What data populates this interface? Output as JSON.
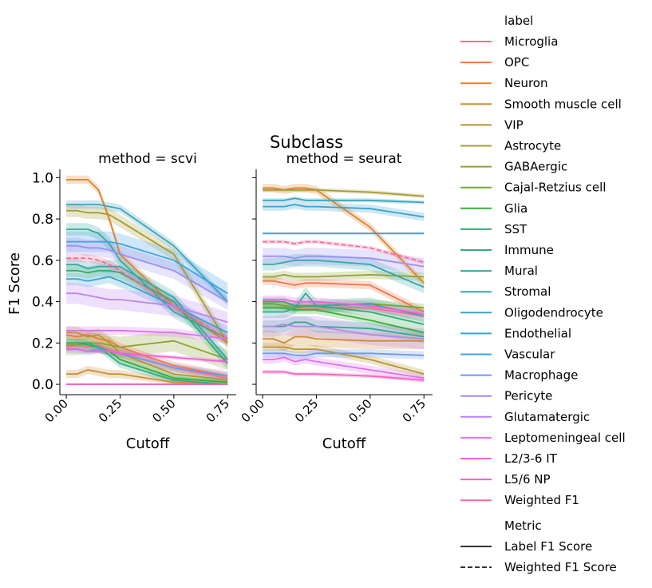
{
  "figure": {
    "suptitle": "Subclass"
  },
  "legend": {
    "label_title": "label",
    "metric_title": "Metric",
    "labels": [
      {
        "name": "Microglia",
        "color": "#f77189"
      },
      {
        "name": "OPC",
        "color": "#f2764a"
      },
      {
        "name": "Neuron",
        "color": "#e0822d"
      },
      {
        "name": "Smooth muscle cell",
        "color": "#cd8c32"
      },
      {
        "name": "VIP",
        "color": "#b89534"
      },
      {
        "name": "Astrocyte",
        "color": "#a59b33"
      },
      {
        "name": "GABAergic",
        "color": "#8fa233"
      },
      {
        "name": "Cajal-Retzius cell",
        "color": "#70aa33"
      },
      {
        "name": "Glia",
        "color": "#35ae3a"
      },
      {
        "name": "SST",
        "color": "#35ab6e"
      },
      {
        "name": "Immune",
        "color": "#36aa8a"
      },
      {
        "name": "Mural",
        "color": "#37a89c"
      },
      {
        "name": "Stromal",
        "color": "#38a7ac"
      },
      {
        "name": "Oligodendrocyte",
        "color": "#3aa5bc"
      },
      {
        "name": "Endothelial",
        "color": "#3ca2ce"
      },
      {
        "name": "Vascular",
        "color": "#42a0e6"
      },
      {
        "name": "Macrophage",
        "color": "#6e98f1"
      },
      {
        "name": "Pericyte",
        "color": "#9c8ef3"
      },
      {
        "name": "Glutamatergic",
        "color": "#bb83f3"
      },
      {
        "name": "Leptomeningeal cell",
        "color": "#da72f0"
      },
      {
        "name": "L2/3-6 IT",
        "color": "#f25fe0"
      },
      {
        "name": "L5/6 NP",
        "color": "#f563bd"
      },
      {
        "name": "Weighted F1",
        "color": "#f66b9e"
      }
    ],
    "metrics": [
      {
        "name": "Label F1 Score",
        "dash": "solid"
      },
      {
        "name": "Weighted F1 Score",
        "dash": "dashed"
      }
    ]
  },
  "chart_data": [
    {
      "type": "line",
      "title": "method = scvi",
      "xlabel": "Cutoff",
      "ylabel": "F1 Score",
      "xlim": [
        -0.03,
        0.79
      ],
      "ylim": [
        -0.05,
        1.04
      ],
      "x_ticks": [
        "0.00",
        "0.25",
        "0.50",
        "0.75"
      ],
      "y_ticks": [
        "0.0",
        "0.2",
        "0.4",
        "0.6",
        "0.8",
        "1.0"
      ],
      "x": [
        0.0,
        0.05,
        0.1,
        0.15,
        0.2,
        0.25,
        0.5,
        0.75
      ],
      "series": [
        {
          "label": "Microglia",
          "values": [
            0.18,
            0.19,
            0.18,
            0.19,
            0.17,
            0.15,
            0.08,
            0.03
          ],
          "band": 0.02
        },
        {
          "label": "OPC",
          "values": [
            0.24,
            0.23,
            0.24,
            0.22,
            0.21,
            0.18,
            0.09,
            0.04
          ],
          "band": 0.02
        },
        {
          "label": "Neuron",
          "values": [
            0.99,
            0.99,
            0.99,
            0.94,
            0.8,
            0.63,
            0.38,
            0.2
          ],
          "band": 0.02
        },
        {
          "label": "Smooth muscle cell",
          "values": [
            0.05,
            0.05,
            0.07,
            0.06,
            0.05,
            0.05,
            0.01,
            0.0
          ],
          "band": 0.02
        },
        {
          "label": "VIP",
          "values": [
            0.25,
            0.25,
            0.23,
            0.24,
            0.2,
            0.15,
            0.05,
            0.02
          ],
          "band": 0.03
        },
        {
          "label": "Astrocyte",
          "values": [
            0.84,
            0.84,
            0.83,
            0.83,
            0.82,
            0.79,
            0.63,
            0.2
          ],
          "band": 0.03
        },
        {
          "label": "GABAergic",
          "values": [
            0.19,
            0.19,
            0.2,
            0.2,
            0.19,
            0.18,
            0.21,
            0.12
          ],
          "band": 0.05
        },
        {
          "label": "Cajal-Retzius cell",
          "values": [
            0.0,
            0.0,
            0.0,
            0.0,
            0.0,
            0.0,
            0.0,
            0.0
          ],
          "band": 0.005
        },
        {
          "label": "Glia",
          "values": [
            0.2,
            0.2,
            0.19,
            0.18,
            0.16,
            0.12,
            0.03,
            0.01
          ],
          "band": 0.02
        },
        {
          "label": "SST",
          "values": [
            0.55,
            0.55,
            0.54,
            0.55,
            0.55,
            0.54,
            0.4,
            0.1
          ],
          "band": 0.03
        },
        {
          "label": "Immune",
          "values": [
            0.2,
            0.2,
            0.2,
            0.18,
            0.14,
            0.1,
            0.02,
            0.0
          ],
          "band": 0.02
        },
        {
          "label": "Mural",
          "values": [
            0.75,
            0.75,
            0.75,
            0.73,
            0.68,
            0.6,
            0.35,
            0.22
          ],
          "band": 0.03
        },
        {
          "label": "Stromal",
          "values": [
            0.58,
            0.58,
            0.56,
            0.57,
            0.57,
            0.57,
            0.42,
            0.12
          ],
          "band": 0.03
        },
        {
          "label": "Oligodendrocyte",
          "values": [
            0.87,
            0.87,
            0.87,
            0.87,
            0.86,
            0.85,
            0.67,
            0.4
          ],
          "band": 0.02
        },
        {
          "label": "Endothelial",
          "values": [
            0.51,
            0.51,
            0.5,
            0.51,
            0.52,
            0.5,
            0.38,
            0.25
          ],
          "band": 0.03
        },
        {
          "label": "Vascular",
          "values": [
            0.69,
            0.69,
            0.69,
            0.69,
            0.69,
            0.68,
            0.6,
            0.44
          ],
          "band": 0.05
        },
        {
          "label": "Macrophage",
          "values": [
            0.17,
            0.17,
            0.16,
            0.17,
            0.16,
            0.15,
            0.08,
            0.04
          ],
          "band": 0.02
        },
        {
          "label": "Pericyte",
          "values": [
            0.67,
            0.67,
            0.66,
            0.66,
            0.65,
            0.63,
            0.55,
            0.4
          ],
          "band": 0.04
        },
        {
          "label": "Glutamatergic",
          "values": [
            0.44,
            0.44,
            0.43,
            0.42,
            0.41,
            0.41,
            0.38,
            0.3
          ],
          "band": 0.05
        },
        {
          "label": "Leptomeningeal cell",
          "values": [
            0.26,
            0.26,
            0.26,
            0.26,
            0.26,
            0.26,
            0.25,
            0.22
          ],
          "band": 0.02
        },
        {
          "label": "L2/3-6 IT",
          "values": [
            0.17,
            0.17,
            0.16,
            0.16,
            0.16,
            0.15,
            0.13,
            0.11
          ],
          "band": 0.01
        },
        {
          "label": "L5/6 NP",
          "values": [
            0.0,
            0.0,
            0.0,
            0.0,
            0.0,
            0.0,
            0.0,
            0.0
          ],
          "band": 0.005
        },
        {
          "label": "Weighted F1",
          "dashed": true,
          "values": [
            0.61,
            0.61,
            0.61,
            0.6,
            0.58,
            0.55,
            0.38,
            0.22
          ],
          "band": 0.02
        }
      ]
    },
    {
      "type": "line",
      "title": "method = seurat",
      "xlabel": "Cutoff",
      "ylabel": "",
      "xlim": [
        -0.03,
        0.79
      ],
      "ylim": [
        -0.05,
        1.04
      ],
      "x_ticks": [
        "0.00",
        "0.25",
        "0.50",
        "0.75"
      ],
      "y_ticks": [],
      "x": [
        0.0,
        0.05,
        0.1,
        0.15,
        0.2,
        0.25,
        0.5,
        0.75
      ],
      "series": [
        {
          "label": "Microglia",
          "values": [
            0.39,
            0.39,
            0.38,
            0.37,
            0.37,
            0.37,
            0.37,
            0.33
          ],
          "band": 0.02
        },
        {
          "label": "OPC",
          "values": [
            0.5,
            0.5,
            0.49,
            0.48,
            0.49,
            0.49,
            0.48,
            0.35
          ],
          "band": 0.02
        },
        {
          "label": "Neuron",
          "values": [
            0.95,
            0.95,
            0.94,
            0.95,
            0.95,
            0.94,
            0.76,
            0.49
          ],
          "band": 0.02
        },
        {
          "label": "Smooth muscle cell",
          "values": [
            0.22,
            0.22,
            0.2,
            0.23,
            0.23,
            0.22,
            0.21,
            0.21
          ],
          "band": 0.04
        },
        {
          "label": "VIP",
          "values": [
            0.18,
            0.18,
            0.18,
            0.17,
            0.17,
            0.17,
            0.12,
            0.05
          ],
          "band": 0.02
        },
        {
          "label": "Astrocyte",
          "values": [
            0.94,
            0.94,
            0.94,
            0.94,
            0.94,
            0.94,
            0.93,
            0.91
          ],
          "band": 0.01
        },
        {
          "label": "GABAergic",
          "values": [
            0.52,
            0.52,
            0.53,
            0.52,
            0.52,
            0.52,
            0.53,
            0.52
          ],
          "band": 0.02
        },
        {
          "label": "Cajal-Retzius cell",
          "values": [
            0.39,
            0.39,
            0.38,
            0.37,
            0.38,
            0.38,
            0.39,
            0.37
          ],
          "band": 0.02
        },
        {
          "label": "Glia",
          "values": [
            0.37,
            0.37,
            0.37,
            0.36,
            0.36,
            0.36,
            0.31,
            0.25
          ],
          "band": 0.02
        },
        {
          "label": "SST",
          "values": [
            0.4,
            0.4,
            0.4,
            0.38,
            0.38,
            0.38,
            0.35,
            0.29
          ],
          "band": 0.02
        },
        {
          "label": "Immune",
          "values": [
            0.28,
            0.28,
            0.28,
            0.3,
            0.3,
            0.28,
            0.27,
            0.23
          ],
          "band": 0.03
        },
        {
          "label": "Mural",
          "values": [
            0.35,
            0.35,
            0.35,
            0.37,
            0.44,
            0.38,
            0.39,
            0.33
          ],
          "band": 0.03
        },
        {
          "label": "Stromal",
          "values": [
            0.58,
            0.58,
            0.59,
            0.6,
            0.6,
            0.6,
            0.58,
            0.47
          ],
          "band": 0.03
        },
        {
          "label": "Oligodendrocyte",
          "values": [
            0.89,
            0.89,
            0.89,
            0.9,
            0.89,
            0.89,
            0.89,
            0.88
          ],
          "band": 0.01
        },
        {
          "label": "Endothelial",
          "values": [
            0.86,
            0.86,
            0.86,
            0.87,
            0.86,
            0.86,
            0.85,
            0.81
          ],
          "band": 0.02
        },
        {
          "label": "Vascular",
          "values": [
            0.73,
            0.73,
            0.73,
            0.73,
            0.73,
            0.73,
            0.73,
            0.73
          ],
          "band": 0.005
        },
        {
          "label": "Macrophage",
          "values": [
            0.15,
            0.15,
            0.15,
            0.14,
            0.14,
            0.15,
            0.15,
            0.14
          ],
          "band": 0.02
        },
        {
          "label": "Pericyte",
          "values": [
            0.62,
            0.62,
            0.62,
            0.61,
            0.62,
            0.62,
            0.61,
            0.57
          ],
          "band": 0.04
        },
        {
          "label": "Glutamatergic",
          "values": [
            0.28,
            0.28,
            0.29,
            0.28,
            0.28,
            0.28,
            0.24,
            0.22
          ],
          "band": 0.05
        },
        {
          "label": "Leptomeningeal cell",
          "values": [
            0.12,
            0.12,
            0.13,
            0.11,
            0.12,
            0.11,
            0.07,
            0.03
          ],
          "band": 0.02
        },
        {
          "label": "L2/3-6 IT",
          "values": [
            0.41,
            0.41,
            0.41,
            0.4,
            0.4,
            0.4,
            0.38,
            0.34
          ],
          "band": 0.02
        },
        {
          "label": "L5/6 NP",
          "values": [
            0.06,
            0.06,
            0.06,
            0.05,
            0.05,
            0.05,
            0.04,
            0.02
          ],
          "band": 0.01
        },
        {
          "label": "Weighted F1",
          "dashed": true,
          "values": [
            0.69,
            0.69,
            0.69,
            0.68,
            0.69,
            0.69,
            0.66,
            0.59
          ],
          "band": 0.01
        }
      ]
    }
  ]
}
